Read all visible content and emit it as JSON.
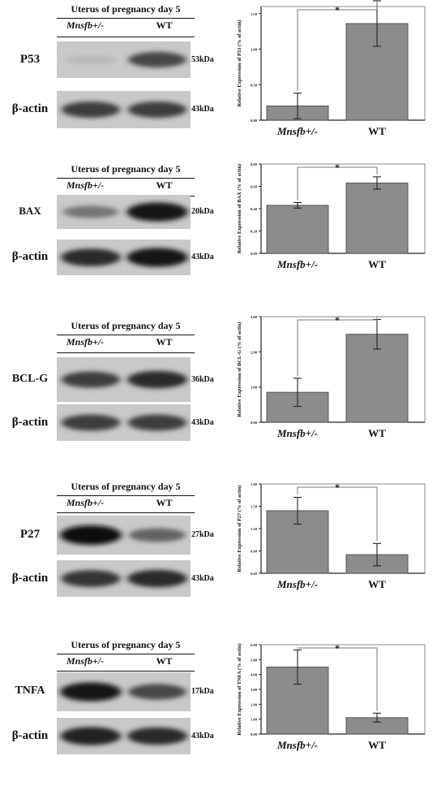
{
  "panels": [
    {
      "id": "p53",
      "head": {
        "title": "Uterus of pregnancy day 5",
        "genotype_ko": "Mnsfb+/-",
        "genotype_wt": "WT"
      },
      "target": {
        "label": "P53",
        "kda": "53kDa",
        "band_intensity": [
          0.1,
          0.7
        ]
      },
      "loading": {
        "label": "β-actin",
        "kda": "43kDa",
        "band_intensity": [
          0.75,
          0.75
        ]
      },
      "chart_data": {
        "type": "bar",
        "categories": [
          "Mnsfb+/-",
          "WT"
        ],
        "values": [
          0.2,
          1.36
        ],
        "errors": [
          0.18,
          0.32
        ],
        "ylim": [
          0,
          1.6
        ],
        "yticks": [
          0,
          0.5,
          1.0,
          1.5
        ],
        "ytick_labels": [
          "0.00",
          "0.50",
          "1.00",
          "1.50"
        ],
        "ylabel": "Relative Expression of P53 (% of actin)",
        "significance": "*"
      }
    },
    {
      "id": "bax",
      "head": {
        "title": "Uterus of pregnancy day 5",
        "genotype_ko": "Mnsfb+/-",
        "genotype_wt": "WT"
      },
      "target": {
        "label": "BAX",
        "kda": "20kDa",
        "band_intensity": [
          0.45,
          0.95
        ]
      },
      "loading": {
        "label": "β-actin",
        "kda": "43kDa",
        "band_intensity": [
          0.85,
          0.95
        ]
      },
      "chart_data": {
        "type": "bar",
        "categories": [
          "Mnsfb+/-",
          "WT"
        ],
        "values": [
          0.43,
          0.63
        ],
        "errors": [
          0.025,
          0.055
        ],
        "ylim": [
          0,
          0.8
        ],
        "yticks": [
          0,
          0.2,
          0.4,
          0.6,
          0.8
        ],
        "ytick_labels": [
          "0.00",
          "0.20",
          "0.40",
          "0.60",
          "0.80"
        ],
        "ylabel": "Relative Expression of BAX (% of actin)",
        "significance": "*"
      }
    },
    {
      "id": "bclg",
      "head": {
        "title": "Uterus of pregnancy day 5",
        "genotype_ko": "Mnsfb+/-",
        "genotype_wt": "WT"
      },
      "target": {
        "label": "BCL-G",
        "kda": "36kDa",
        "band_intensity": [
          0.75,
          0.85
        ]
      },
      "loading": {
        "label": "β-actin",
        "kda": "43kDa",
        "band_intensity": [
          0.75,
          0.75
        ]
      },
      "chart_data": {
        "type": "bar",
        "categories": [
          "Mnsfb+/-",
          "WT"
        ],
        "values": [
          0.85,
          2.5
        ],
        "errors": [
          0.4,
          0.42
        ],
        "ylim": [
          0,
          3.0
        ],
        "yticks": [
          0,
          1,
          2,
          3
        ],
        "ytick_labels": [
          "0.00",
          "1.00",
          "2.00",
          "3.00"
        ],
        "ylabel": "Relative Expression of BCL-G (% of actin)",
        "significance": "*"
      }
    },
    {
      "id": "p27",
      "head": {
        "title": "Uterus of pregnancy day 5",
        "genotype_ko": "Mnsfb+/-",
        "genotype_wt": "WT"
      },
      "target": {
        "label": "P27",
        "kda": "27kDa",
        "band_intensity": [
          1.0,
          0.55
        ]
      },
      "loading": {
        "label": "β-actin",
        "kda": "43kDa",
        "band_intensity": [
          0.8,
          0.85
        ]
      },
      "chart_data": {
        "type": "bar",
        "categories": [
          "Mnsfb+/-",
          "WT"
        ],
        "values": [
          1.44,
          0.85
        ],
        "errors": [
          0.18,
          0.15
        ],
        "ylim": [
          0.6,
          1.8
        ],
        "yticks": [
          0.6,
          0.9,
          1.2,
          1.5,
          1.8
        ],
        "ytick_labels": [
          "0.60",
          "0.90",
          "1.20",
          "1.50",
          "1.80"
        ],
        "ylabel": "Relative Expression of P27 (% of actin)",
        "significance": "*"
      }
    },
    {
      "id": "tnfa",
      "head": {
        "title": "Uterus of pregnancy day 5",
        "genotype_ko": "Mnsfb+/-",
        "genotype_wt": "WT"
      },
      "target": {
        "label": "TNFA",
        "kda": "17kDa",
        "band_intensity": [
          0.95,
          0.7
        ]
      },
      "loading": {
        "label": "β-actin",
        "kda": "43kDa",
        "band_intensity": [
          0.9,
          0.85
        ]
      },
      "chart_data": {
        "type": "bar",
        "categories": [
          "Mnsfb+/-",
          "WT"
        ],
        "values": [
          4.5,
          1.1
        ],
        "errors": [
          1.15,
          0.3
        ],
        "ylim": [
          0,
          6.0
        ],
        "yticks": [
          0,
          1,
          2,
          3,
          4,
          5,
          6
        ],
        "ytick_labels": [
          "0.00",
          "1.00",
          "2.00",
          "3.00",
          "4.00",
          "5.00",
          "6.00"
        ],
        "ylabel": "Relative Expression of TNFA (% of actin)",
        "significance": "*"
      }
    }
  ]
}
